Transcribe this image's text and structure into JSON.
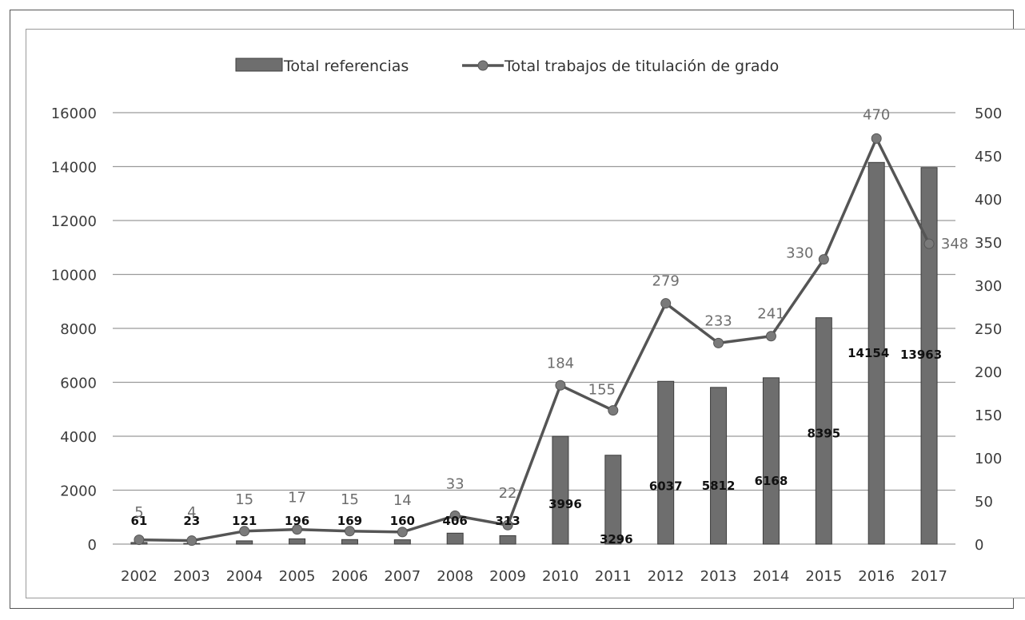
{
  "chart_data": {
    "type": "bar",
    "categories": [
      "2002",
      "2003",
      "2004",
      "2005",
      "2006",
      "2007",
      "2008",
      "2009",
      "2010",
      "2011",
      "2012",
      "2013",
      "2014",
      "2015",
      "2016",
      "2017"
    ],
    "series": [
      {
        "name": "Total referencias",
        "type": "bar",
        "axis": "left",
        "values": [
          61,
          23,
          121,
          196,
          169,
          160,
          406,
          313,
          3996,
          3296,
          6037,
          5812,
          6168,
          8395,
          14154,
          13963
        ],
        "color": "#6e6e6e"
      },
      {
        "name": "Total trabajos de titulación de grado",
        "type": "line",
        "axis": "right",
        "values": [
          5,
          4,
          15,
          17,
          15,
          14,
          33,
          22,
          184,
          155,
          279,
          233,
          241,
          330,
          470,
          348
        ],
        "color": "#555555"
      }
    ],
    "y_left": {
      "min": 0,
      "max": 16000,
      "ticks": [
        "0",
        "2000",
        "4000",
        "6000",
        "8000",
        "10000",
        "12000",
        "14000",
        "16000"
      ]
    },
    "y_right": {
      "min": 0,
      "max": 500,
      "ticks": [
        "0",
        "50",
        "100",
        "150",
        "200",
        "250",
        "300",
        "350",
        "400",
        "450",
        "500"
      ]
    },
    "grid": true,
    "legend_position": "top-center"
  }
}
